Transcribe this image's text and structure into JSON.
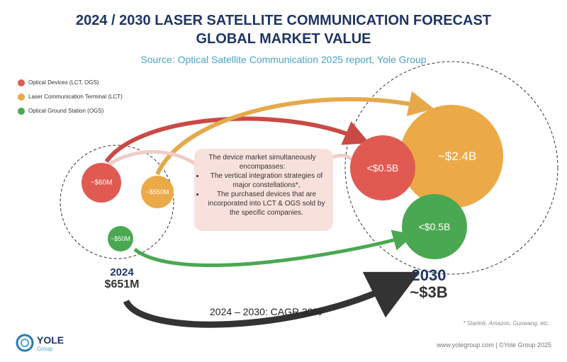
{
  "header": {
    "title_line1": "2024 / 2030 LASER SATELLITE COMMUNICATION FORECAST",
    "title_line2": "GLOBAL MARKET VALUE",
    "source": "Source: Optical Satellite Communication 2025 report, Yole Group"
  },
  "legend": [
    "Optical Devices (LCT, OGS)",
    "Laser Communication Terminal (LCT)",
    "Optical Ground Station (OGS)"
  ],
  "left": {
    "bubbles": [
      "~$60M",
      "~$550M",
      "~$50M"
    ],
    "year": "2024",
    "total": "$651M"
  },
  "right": {
    "bubbles": [
      "<$0.5B",
      "~$2.4B",
      "<$0.5B"
    ],
    "year": "2030",
    "total": "~$3B"
  },
  "note": {
    "intro": "The device market simultaneously encompasses:",
    "bullets": [
      "The vertical integration strategies of major constellations*,",
      "The purchased devices that are incorporated into LCT & OGS sold by the specific companies."
    ]
  },
  "cagr": "2024 – 2030: CAGR 30%",
  "footnote": "* Starlink, Amazon, Guowang, etc.",
  "logo": {
    "name": "YOLE",
    "sub": "Group"
  },
  "footer": "www.yolegroup.com | ©Yole Group 2025"
}
